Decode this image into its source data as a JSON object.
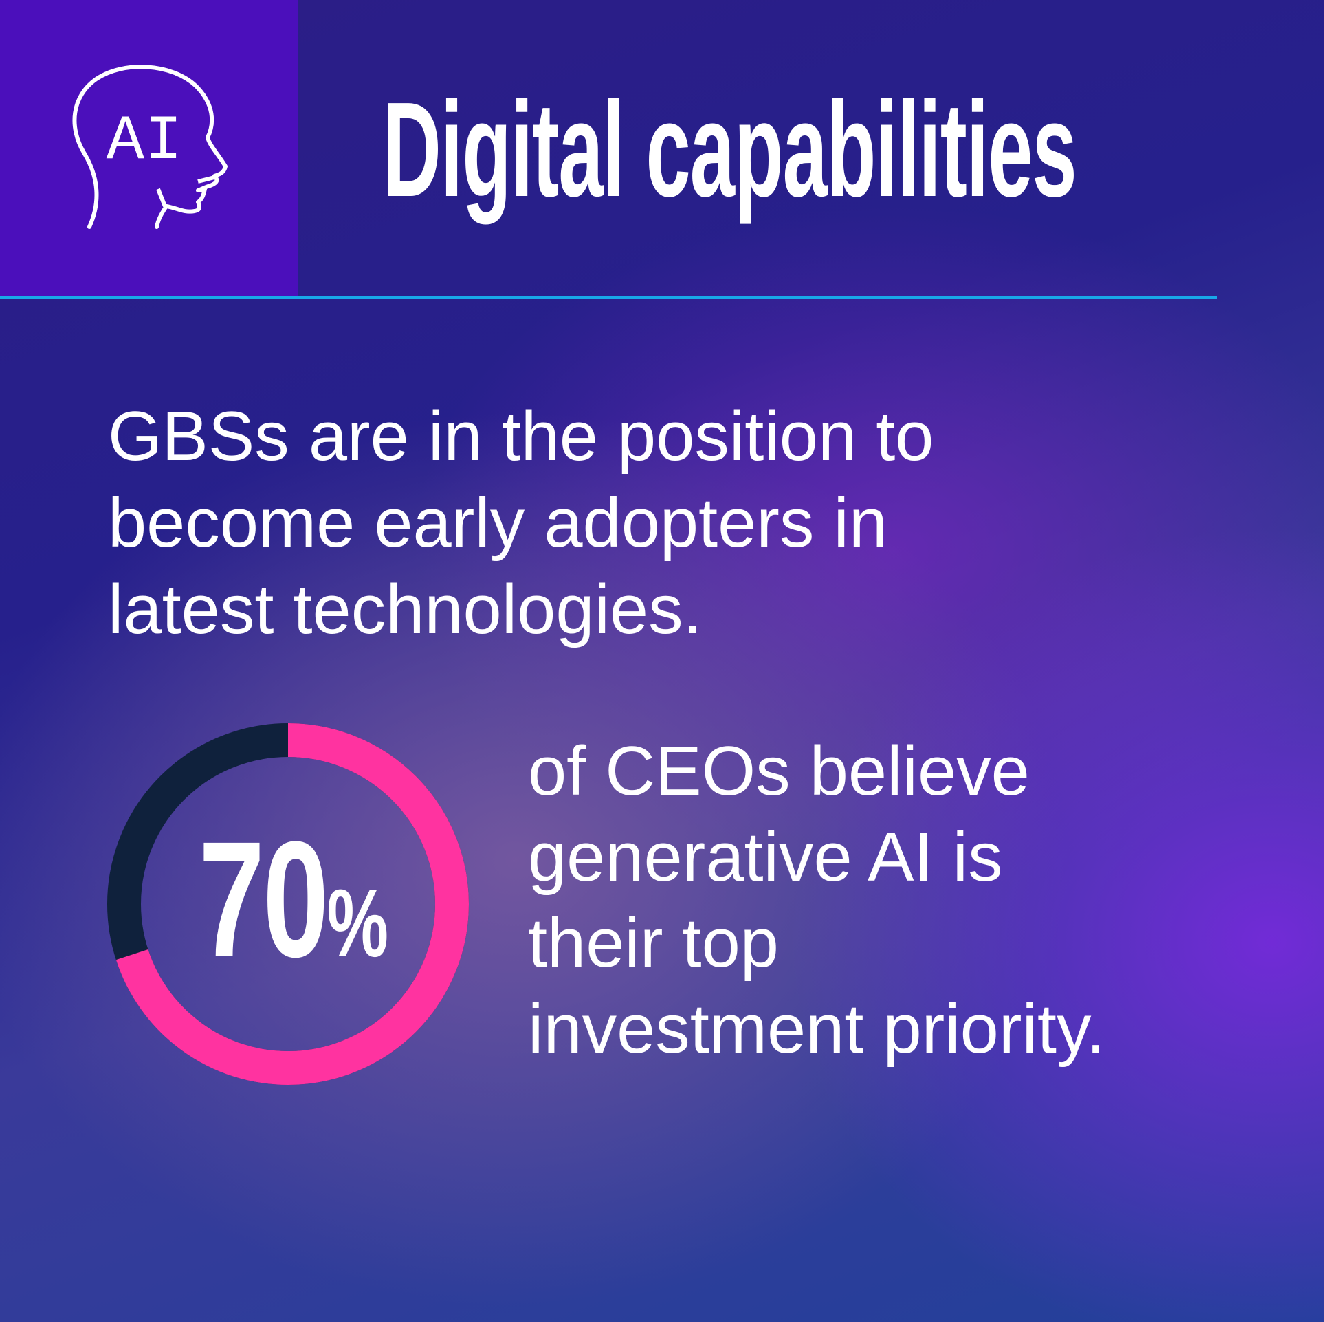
{
  "header": {
    "title": "Digital capabilities",
    "icon": "ai-head-icon",
    "icon_text": "AI"
  },
  "headline": {
    "lines": [
      "GBSs are in the position to",
      "become early adopters in",
      "latest technologies."
    ]
  },
  "stat": {
    "value": "70",
    "unit": "%",
    "percent": 70,
    "lines": [
      "of CEOs believe",
      "generative AI is",
      "their top",
      "investment priority."
    ]
  },
  "colors": {
    "accent_pink": "#ff33a0",
    "remainder_dark": "#0f213c",
    "rule_blue": "#18a8e8",
    "icon_box": "#4b0fbb"
  }
}
